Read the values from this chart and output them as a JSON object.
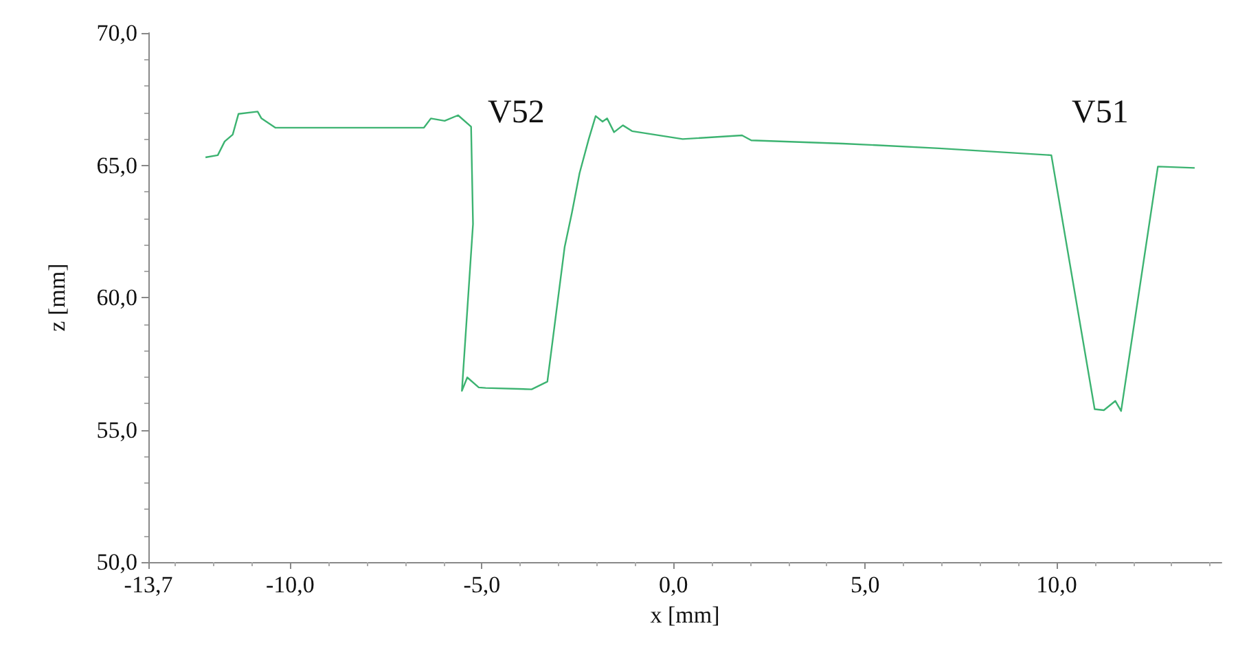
{
  "chart_data": {
    "type": "line",
    "xlabel": "x [mm]",
    "ylabel": "z [mm]",
    "xlim": [
      -13.7,
      14.3
    ],
    "xticks": [
      {
        "value": -13.7,
        "label": "-13,7"
      },
      {
        "value": -10,
        "label": "-10,0"
      },
      {
        "value": -5,
        "label": "-5,0"
      },
      {
        "value": 0,
        "label": "0,0"
      },
      {
        "value": 5,
        "label": "5,0"
      },
      {
        "value": 10,
        "label": "10,0"
      }
    ],
    "ylim": [
      50,
      70
    ],
    "yticks": [
      {
        "value": 50,
        "label": "50,0"
      },
      {
        "value": 55,
        "label": "55,0"
      },
      {
        "value": 60,
        "label": "60,0"
      },
      {
        "value": 65,
        "label": "65,0"
      },
      {
        "value": 70,
        "label": "70,0"
      }
    ],
    "grid": false,
    "marker": "none",
    "line_style": "solid",
    "series": [
      {
        "color": "#3cb371",
        "x": [
          -12.21,
          -11.89,
          -11.71,
          -11.5,
          -11.35,
          -10.85,
          -10.75,
          -10.39,
          -8.6,
          -6.51,
          -6.33,
          -5.97,
          -5.62,
          -5.28,
          -5.23,
          -5.52,
          -5.38,
          -5.08,
          -4.9,
          -3.7,
          -3.29,
          -2.84,
          -2.65,
          -2.45,
          -2.21,
          -2.03,
          -1.85,
          -1.73,
          -1.55,
          -1.32,
          -1.08,
          0.24,
          1.79,
          2.03,
          4.42,
          6.93,
          9.86,
          10.99,
          11.23,
          11.53,
          11.68,
          12.64,
          13.6
        ],
        "values": [
          65.3,
          65.38,
          65.9,
          66.16,
          66.94,
          67.03,
          66.77,
          66.42,
          66.42,
          66.42,
          66.77,
          66.68,
          66.89,
          66.46,
          62.78,
          56.47,
          56.98,
          56.6,
          56.58,
          56.53,
          56.82,
          61.9,
          63.2,
          64.7,
          65.99,
          66.86,
          66.65,
          66.77,
          66.25,
          66.51,
          66.29,
          65.99,
          66.13,
          65.94,
          65.82,
          65.64,
          65.38,
          55.78,
          55.74,
          56.09,
          55.71,
          64.95,
          64.9
        ]
      }
    ],
    "annotations": [
      "V52",
      "V51"
    ]
  }
}
